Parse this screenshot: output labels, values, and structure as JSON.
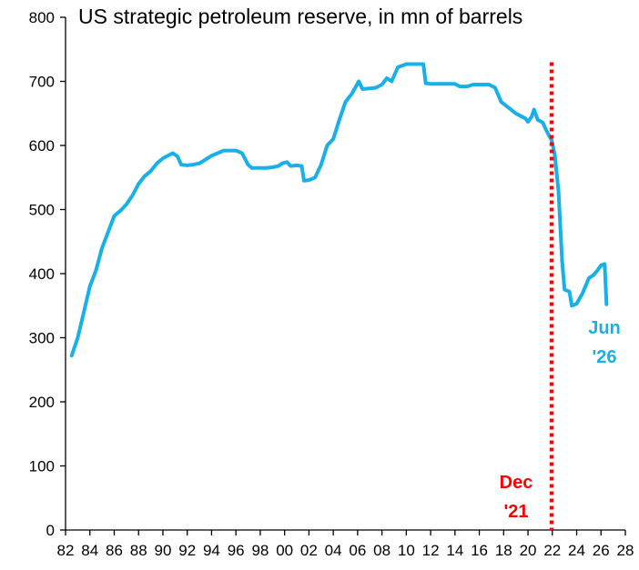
{
  "chart_data": {
    "type": "line",
    "title": "US strategic petroleum reserve, in mn of barrels",
    "xlabel": "",
    "ylabel": "",
    "xlim": [
      1982,
      2028
    ],
    "ylim": [
      0,
      800
    ],
    "yticks": [
      0,
      100,
      200,
      300,
      400,
      500,
      600,
      700,
      800
    ],
    "xtick_values": [
      1982,
      1984,
      1986,
      1988,
      1990,
      1992,
      1994,
      1996,
      1998,
      2000,
      2002,
      2004,
      2006,
      2008,
      2010,
      2012,
      2014,
      2016,
      2018,
      2020,
      2022,
      2024,
      2026,
      2028
    ],
    "xtick_labels": [
      "82",
      "84",
      "86",
      "88",
      "90",
      "92",
      "94",
      "96",
      "98",
      "00",
      "02",
      "04",
      "06",
      "08",
      "10",
      "12",
      "14",
      "16",
      "18",
      "20",
      "22",
      "24",
      "26",
      "28"
    ],
    "grid": false,
    "legend": "none",
    "series": [
      {
        "color": "#17b0e8",
        "points": [
          [
            1982.5,
            272
          ],
          [
            1983.0,
            300
          ],
          [
            1983.5,
            340
          ],
          [
            1984.0,
            380
          ],
          [
            1984.5,
            405
          ],
          [
            1985.0,
            440
          ],
          [
            1985.5,
            465
          ],
          [
            1986.0,
            490
          ],
          [
            1986.5,
            498
          ],
          [
            1987.0,
            508
          ],
          [
            1987.5,
            522
          ],
          [
            1988.0,
            540
          ],
          [
            1988.5,
            552
          ],
          [
            1989.0,
            560
          ],
          [
            1989.5,
            572
          ],
          [
            1990.0,
            580
          ],
          [
            1990.5,
            585
          ],
          [
            1990.8,
            588
          ],
          [
            1991.2,
            583
          ],
          [
            1991.5,
            570
          ],
          [
            1992.0,
            569
          ],
          [
            1992.5,
            570
          ],
          [
            1993.0,
            572
          ],
          [
            1993.5,
            578
          ],
          [
            1994.0,
            584
          ],
          [
            1994.5,
            588
          ],
          [
            1995.0,
            592
          ],
          [
            1995.5,
            592
          ],
          [
            1996.0,
            592
          ],
          [
            1996.5,
            588
          ],
          [
            1997.0,
            570
          ],
          [
            1997.3,
            565
          ],
          [
            1998.0,
            565
          ],
          [
            1998.5,
            565
          ],
          [
            1999.0,
            566
          ],
          [
            1999.5,
            568
          ],
          [
            1999.8,
            572
          ],
          [
            2000.2,
            574
          ],
          [
            2000.5,
            568
          ],
          [
            2001.0,
            569
          ],
          [
            2001.4,
            568
          ],
          [
            2001.6,
            545
          ],
          [
            2002.0,
            546
          ],
          [
            2002.5,
            550
          ],
          [
            2003.0,
            570
          ],
          [
            2003.5,
            600
          ],
          [
            2004.0,
            610
          ],
          [
            2004.5,
            640
          ],
          [
            2005.0,
            668
          ],
          [
            2005.5,
            680
          ],
          [
            2005.8,
            690
          ],
          [
            2006.1,
            700
          ],
          [
            2006.4,
            688
          ],
          [
            2007.0,
            689
          ],
          [
            2007.5,
            690
          ],
          [
            2008.0,
            695
          ],
          [
            2008.4,
            705
          ],
          [
            2008.8,
            700
          ],
          [
            2009.3,
            722
          ],
          [
            2010.0,
            727
          ],
          [
            2011.0,
            727
          ],
          [
            2011.4,
            727
          ],
          [
            2011.6,
            697
          ],
          [
            2012.0,
            696
          ],
          [
            2013.0,
            696
          ],
          [
            2014.0,
            696
          ],
          [
            2014.4,
            692
          ],
          [
            2015.0,
            692
          ],
          [
            2015.5,
            695
          ],
          [
            2016.0,
            695
          ],
          [
            2016.8,
            695
          ],
          [
            2017.3,
            690
          ],
          [
            2017.8,
            668
          ],
          [
            2018.2,
            662
          ],
          [
            2018.6,
            656
          ],
          [
            2019.0,
            650
          ],
          [
            2019.5,
            645
          ],
          [
            2019.8,
            642
          ],
          [
            2020.0,
            637
          ],
          [
            2020.3,
            645
          ],
          [
            2020.5,
            656
          ],
          [
            2020.8,
            640
          ],
          [
            2021.2,
            636
          ],
          [
            2021.6,
            620
          ],
          [
            2021.95,
            608
          ],
          [
            2022.2,
            585
          ],
          [
            2022.5,
            530
          ],
          [
            2022.8,
            420
          ],
          [
            2023.0,
            375
          ],
          [
            2023.4,
            372
          ],
          [
            2023.6,
            350
          ],
          [
            2024.0,
            353
          ],
          [
            2024.5,
            370
          ],
          [
            2025.0,
            393
          ],
          [
            2025.4,
            398
          ],
          [
            2025.7,
            405
          ],
          [
            2026.0,
            413
          ],
          [
            2026.3,
            415
          ],
          [
            2026.45,
            352
          ]
        ]
      }
    ],
    "annotations": [
      {
        "text_lines": [
          "Jun",
          "'26"
        ],
        "color": "#17b0e8"
      },
      {
        "text_lines": [
          "Dec",
          "'21"
        ],
        "color": "#ff0000",
        "vline_x": 2021.95,
        "vline_style": "dotted"
      }
    ]
  }
}
